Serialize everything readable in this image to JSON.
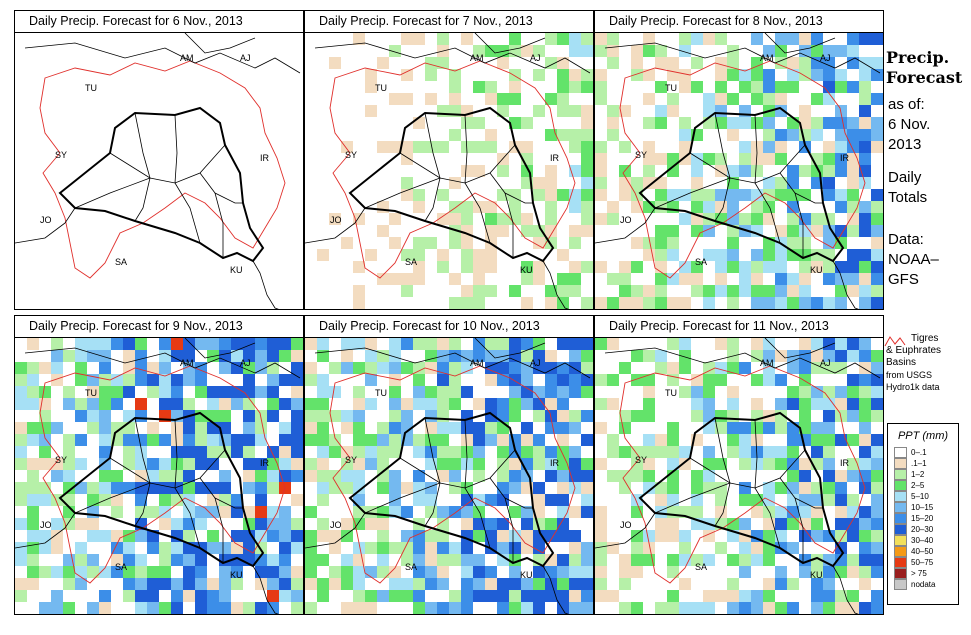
{
  "panels": [
    {
      "title": "Daily Precip. Forecast for  6 Nov., 2013",
      "intensity": 0.15
    },
    {
      "title": "Daily Precip. Forecast for  7 Nov., 2013",
      "intensity": 0.35
    },
    {
      "title": "Daily Precip. Forecast for  8 Nov., 2013",
      "intensity": 0.65
    },
    {
      "title": "Daily Precip. Forecast for  9 Nov., 2013",
      "intensity": 0.95
    },
    {
      "title": "Daily Precip. Forecast for  10 Nov., 2013",
      "intensity": 0.85
    },
    {
      "title": "Daily Precip. Forecast for  11 Nov., 2013",
      "intensity": 0.7
    }
  ],
  "country_labels": [
    "AM",
    "AJ",
    "TU",
    "SY",
    "IR",
    "JO",
    "SA",
    "KU"
  ],
  "sidebar": {
    "title_line1": "Precip.",
    "title_line2": "Forecast",
    "asof_line1": "as of:",
    "asof_line2": "6 Nov.",
    "asof_line3": "2013",
    "daily_line1": "Daily",
    "daily_line2": "Totals",
    "data_line1": "Data:",
    "data_line2": "NOAA–",
    "data_line3": "GFS"
  },
  "basin_note": {
    "line1": "Tigres",
    "line2": "& Euphrates",
    "line3": "Basins",
    "line4": "from USGS",
    "line5": "Hydro1k data"
  },
  "legend": {
    "title": "PPT (mm)",
    "items": [
      {
        "label": "0–.1",
        "color": "#ffffff"
      },
      {
        "label": ".1–1",
        "color": "#f3dcc0"
      },
      {
        "label": "1–2",
        "color": "#b6f0a8"
      },
      {
        "label": "2–5",
        "color": "#63e36a"
      },
      {
        "label": "5–10",
        "color": "#a6e0f5"
      },
      {
        "label": "10–15",
        "color": "#74b9f0"
      },
      {
        "label": "15–20",
        "color": "#3c8ee8"
      },
      {
        "label": "20–30",
        "color": "#1f5ed6"
      },
      {
        "label": "30–40",
        "color": "#f3e05a"
      },
      {
        "label": "40–50",
        "color": "#f59a16"
      },
      {
        "label": "50–75",
        "color": "#e63a14"
      },
      {
        "label": "> 75",
        "color": "#9a1e1e"
      },
      {
        "label": "nodata",
        "color": "#c8c8c8"
      }
    ]
  },
  "colors": {
    "basin": "#e0302c",
    "border": "#000000"
  }
}
